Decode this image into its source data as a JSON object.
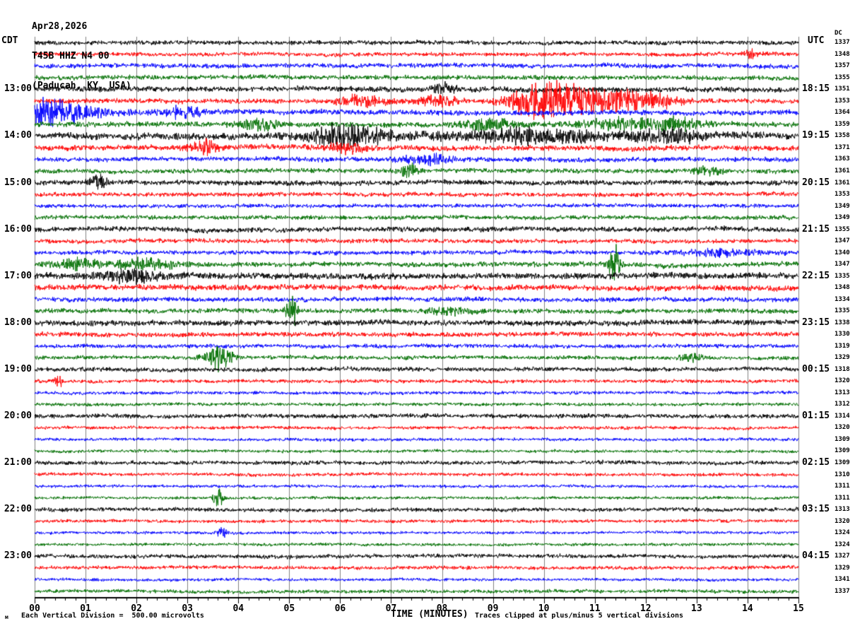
{
  "header": {
    "date": "Apr28,2026",
    "station": "T45B HHZ N4 00",
    "location": "(Paducah, KY, USA)",
    "left_tz": "CDT",
    "right_tz": "UTC",
    "dc_label": "DC"
  },
  "footer": {
    "scale_icon": "м",
    "scale_note": "Each Vertical Division =  500.00 microvolts",
    "xaxis_label": "TIME (MINUTES)",
    "clip_note": "Traces clipped at plus/minus 5 vertical divisions"
  },
  "chart_data": {
    "type": "line",
    "subtype": "helicorder-seismogram",
    "title": "T45B HHZ N4 00 (Paducah, KY, USA) Apr28,2026",
    "xlabel": "TIME (MINUTES)",
    "x_axis": {
      "min": 0,
      "max": 15,
      "tick_labels": [
        "00",
        "01",
        "02",
        "03",
        "04",
        "05",
        "06",
        "07",
        "08",
        "09",
        "10",
        "11",
        "12",
        "13",
        "14",
        "15"
      ],
      "minor_ticks_per_major": 5,
      "grid": true
    },
    "colors": {
      "black": "#000000",
      "red": "#ff0000",
      "blue": "#0000ff",
      "green": "#006f00",
      "grid": "#808080",
      "axis": "#000000"
    },
    "color_cycle": [
      "black",
      "red",
      "blue",
      "green"
    ],
    "minutes_per_row": 15,
    "left_hour_labels": [
      "13:00",
      "14:00",
      "15:00",
      "16:00",
      "17:00",
      "18:00",
      "19:00",
      "20:00",
      "21:00",
      "22:00",
      "23:00"
    ],
    "right_hour_labels": [
      "18:15",
      "19:15",
      "20:15",
      "21:15",
      "22:15",
      "23:15",
      "00:15",
      "01:15",
      "02:15",
      "03:15",
      "04:15"
    ],
    "hour_label_first_row": 4,
    "hour_label_row_step": 4,
    "clip_divisions": 5,
    "microvolts_per_division": 500.0,
    "rows": [
      {
        "dc": 1337,
        "amp": 2.6,
        "events": []
      },
      {
        "dc": 1348,
        "amp": 2.4,
        "events": [
          {
            "t": 14.05,
            "w": 0.08,
            "a": 2.5
          }
        ]
      },
      {
        "dc": 1357,
        "amp": 2.8,
        "events": []
      },
      {
        "dc": 1355,
        "amp": 2.8,
        "events": []
      },
      {
        "dc": 1351,
        "amp": 3.2,
        "events": [
          {
            "t": 8.05,
            "w": 0.15,
            "a": 1.8
          }
        ]
      },
      {
        "dc": 1353,
        "amp": 2.8,
        "events": [
          {
            "t": 6.4,
            "w": 0.35,
            "a": 2.2
          },
          {
            "t": 7.9,
            "w": 0.3,
            "a": 1.8
          },
          {
            "t": 9.7,
            "w": 0.25,
            "a": 2.5
          },
          {
            "t": 10.3,
            "w": 0.55,
            "a": 8
          },
          {
            "t": 11.6,
            "w": 0.45,
            "a": 3.5
          },
          {
            "t": 12.35,
            "w": 0.25,
            "a": 2
          }
        ]
      },
      {
        "dc": 1364,
        "amp": 3.2,
        "events": [
          {
            "t": 0.0,
            "w": 0.75,
            "a": 5
          },
          {
            "t": 2.9,
            "w": 0.25,
            "a": 1.8
          }
        ]
      },
      {
        "dc": 1359,
        "amp": 3.2,
        "events": [
          {
            "t": 4.4,
            "w": 0.25,
            "a": 2
          },
          {
            "t": 8.95,
            "w": 0.35,
            "a": 2
          },
          {
            "t": 11.5,
            "w": 0.5,
            "a": 1.8
          },
          {
            "t": 12.6,
            "w": 0.35,
            "a": 2.2
          }
        ]
      },
      {
        "dc": 1358,
        "amp": 4.2,
        "events": [
          {
            "t": 6.15,
            "w": 0.5,
            "a": 3
          },
          {
            "t": 9.7,
            "w": 1.2,
            "a": 1.6
          },
          {
            "t": 12.5,
            "w": 0.4,
            "a": 1.6
          }
        ]
      },
      {
        "dc": 1371,
        "amp": 3.2,
        "events": [
          {
            "t": 3.35,
            "w": 0.2,
            "a": 2.2
          },
          {
            "t": 6.1,
            "w": 0.25,
            "a": 1.8
          }
        ]
      },
      {
        "dc": 1363,
        "amp": 2.8,
        "events": [
          {
            "t": 7.7,
            "w": 0.35,
            "a": 1.8
          }
        ]
      },
      {
        "dc": 1361,
        "amp": 2.8,
        "events": [
          {
            "t": 7.35,
            "w": 0.15,
            "a": 2.2
          },
          {
            "t": 13.2,
            "w": 0.2,
            "a": 1.8
          }
        ]
      },
      {
        "dc": 1361,
        "amp": 3.0,
        "events": [
          {
            "t": 1.25,
            "w": 0.12,
            "a": 2.5
          }
        ]
      },
      {
        "dc": 1353,
        "amp": 2.6,
        "events": []
      },
      {
        "dc": 1349,
        "amp": 2.4,
        "events": []
      },
      {
        "dc": 1349,
        "amp": 2.6,
        "events": []
      },
      {
        "dc": 1355,
        "amp": 3.0,
        "events": []
      },
      {
        "dc": 1347,
        "amp": 2.6,
        "events": []
      },
      {
        "dc": 1340,
        "amp": 2.6,
        "events": [
          {
            "t": 13.4,
            "w": 0.5,
            "a": 1.5
          }
        ]
      },
      {
        "dc": 1347,
        "amp": 3.0,
        "events": [
          {
            "t": 0.9,
            "w": 0.3,
            "a": 1.8
          },
          {
            "t": 2.2,
            "w": 0.4,
            "a": 2
          },
          {
            "t": 11.37,
            "w": 0.07,
            "a": 9
          }
        ]
      },
      {
        "dc": 1335,
        "amp": 3.8,
        "events": [
          {
            "t": 1.9,
            "w": 0.4,
            "a": 1.8
          }
        ]
      },
      {
        "dc": 1348,
        "amp": 3.4,
        "events": []
      },
      {
        "dc": 1334,
        "amp": 2.8,
        "events": []
      },
      {
        "dc": 1335,
        "amp": 2.8,
        "events": [
          {
            "t": 5.05,
            "w": 0.07,
            "a": 7
          },
          {
            "t": 8.2,
            "w": 0.3,
            "a": 1.5
          }
        ]
      },
      {
        "dc": 1338,
        "amp": 3.4,
        "events": []
      },
      {
        "dc": 1330,
        "amp": 2.8,
        "events": []
      },
      {
        "dc": 1319,
        "amp": 2.4,
        "events": []
      },
      {
        "dc": 1329,
        "amp": 2.4,
        "events": [
          {
            "t": 3.62,
            "w": 0.18,
            "a": 6
          },
          {
            "t": 12.9,
            "w": 0.15,
            "a": 1.8
          }
        ]
      },
      {
        "dc": 1318,
        "amp": 2.6,
        "events": []
      },
      {
        "dc": 1320,
        "amp": 2.2,
        "events": [
          {
            "t": 0.45,
            "w": 0.06,
            "a": 4
          }
        ]
      },
      {
        "dc": 1313,
        "amp": 2.0,
        "events": []
      },
      {
        "dc": 1312,
        "amp": 2.0,
        "events": []
      },
      {
        "dc": 1314,
        "amp": 2.6,
        "events": []
      },
      {
        "dc": 1320,
        "amp": 2.0,
        "events": []
      },
      {
        "dc": 1309,
        "amp": 1.9,
        "events": []
      },
      {
        "dc": 1309,
        "amp": 1.9,
        "events": []
      },
      {
        "dc": 1309,
        "amp": 2.4,
        "events": []
      },
      {
        "dc": 1310,
        "amp": 2.0,
        "events": []
      },
      {
        "dc": 1311,
        "amp": 1.8,
        "events": []
      },
      {
        "dc": 1311,
        "amp": 1.8,
        "events": [
          {
            "t": 3.62,
            "w": 0.07,
            "a": 6
          }
        ]
      },
      {
        "dc": 1313,
        "amp": 2.4,
        "events": []
      },
      {
        "dc": 1320,
        "amp": 2.0,
        "events": []
      },
      {
        "dc": 1324,
        "amp": 1.8,
        "events": [
          {
            "t": 3.68,
            "w": 0.06,
            "a": 4
          }
        ]
      },
      {
        "dc": 1324,
        "amp": 1.8,
        "events": []
      },
      {
        "dc": 1327,
        "amp": 2.4,
        "events": []
      },
      {
        "dc": 1329,
        "amp": 2.2,
        "events": []
      },
      {
        "dc": 1341,
        "amp": 1.8,
        "events": []
      },
      {
        "dc": 1337,
        "amp": 2.2,
        "events": []
      }
    ]
  }
}
